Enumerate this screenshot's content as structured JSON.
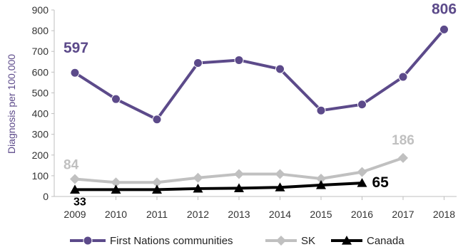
{
  "chart_data": {
    "type": "line",
    "categories": [
      "2009",
      "2010",
      "2011",
      "2012",
      "2013",
      "2014",
      "2015",
      "2016",
      "2017",
      "2018"
    ],
    "ylabel": "Diagnosis per 100,000",
    "xlabel": "",
    "ylim": [
      0,
      900
    ],
    "yticks": [
      0,
      100,
      200,
      300,
      400,
      500,
      600,
      700,
      800,
      900
    ],
    "grid": false,
    "legend_position": "bottom",
    "series": [
      {
        "name": "First Nations communities",
        "values": [
          597,
          470,
          372,
          644,
          658,
          615,
          415,
          444,
          577,
          806
        ],
        "color": "#5c4a8a",
        "marker": "circle",
        "labels": [
          {
            "index": 0,
            "text": "597"
          },
          {
            "index": 9,
            "text": "806"
          }
        ]
      },
      {
        "name": "SK",
        "values": [
          84,
          68,
          68,
          90,
          108,
          108,
          86,
          118,
          186,
          null
        ],
        "color": "#c0c0c0",
        "marker": "diamond",
        "labels": [
          {
            "index": 0,
            "text": "84"
          },
          {
            "index": 8,
            "text": "186"
          }
        ]
      },
      {
        "name": "Canada",
        "values": [
          33,
          33,
          33,
          38,
          40,
          44,
          55,
          65,
          null,
          null
        ],
        "color": "#000000",
        "marker": "triangle",
        "labels": [
          {
            "index": 0,
            "text": "33"
          },
          {
            "index": 7,
            "text": "65"
          }
        ]
      }
    ]
  }
}
